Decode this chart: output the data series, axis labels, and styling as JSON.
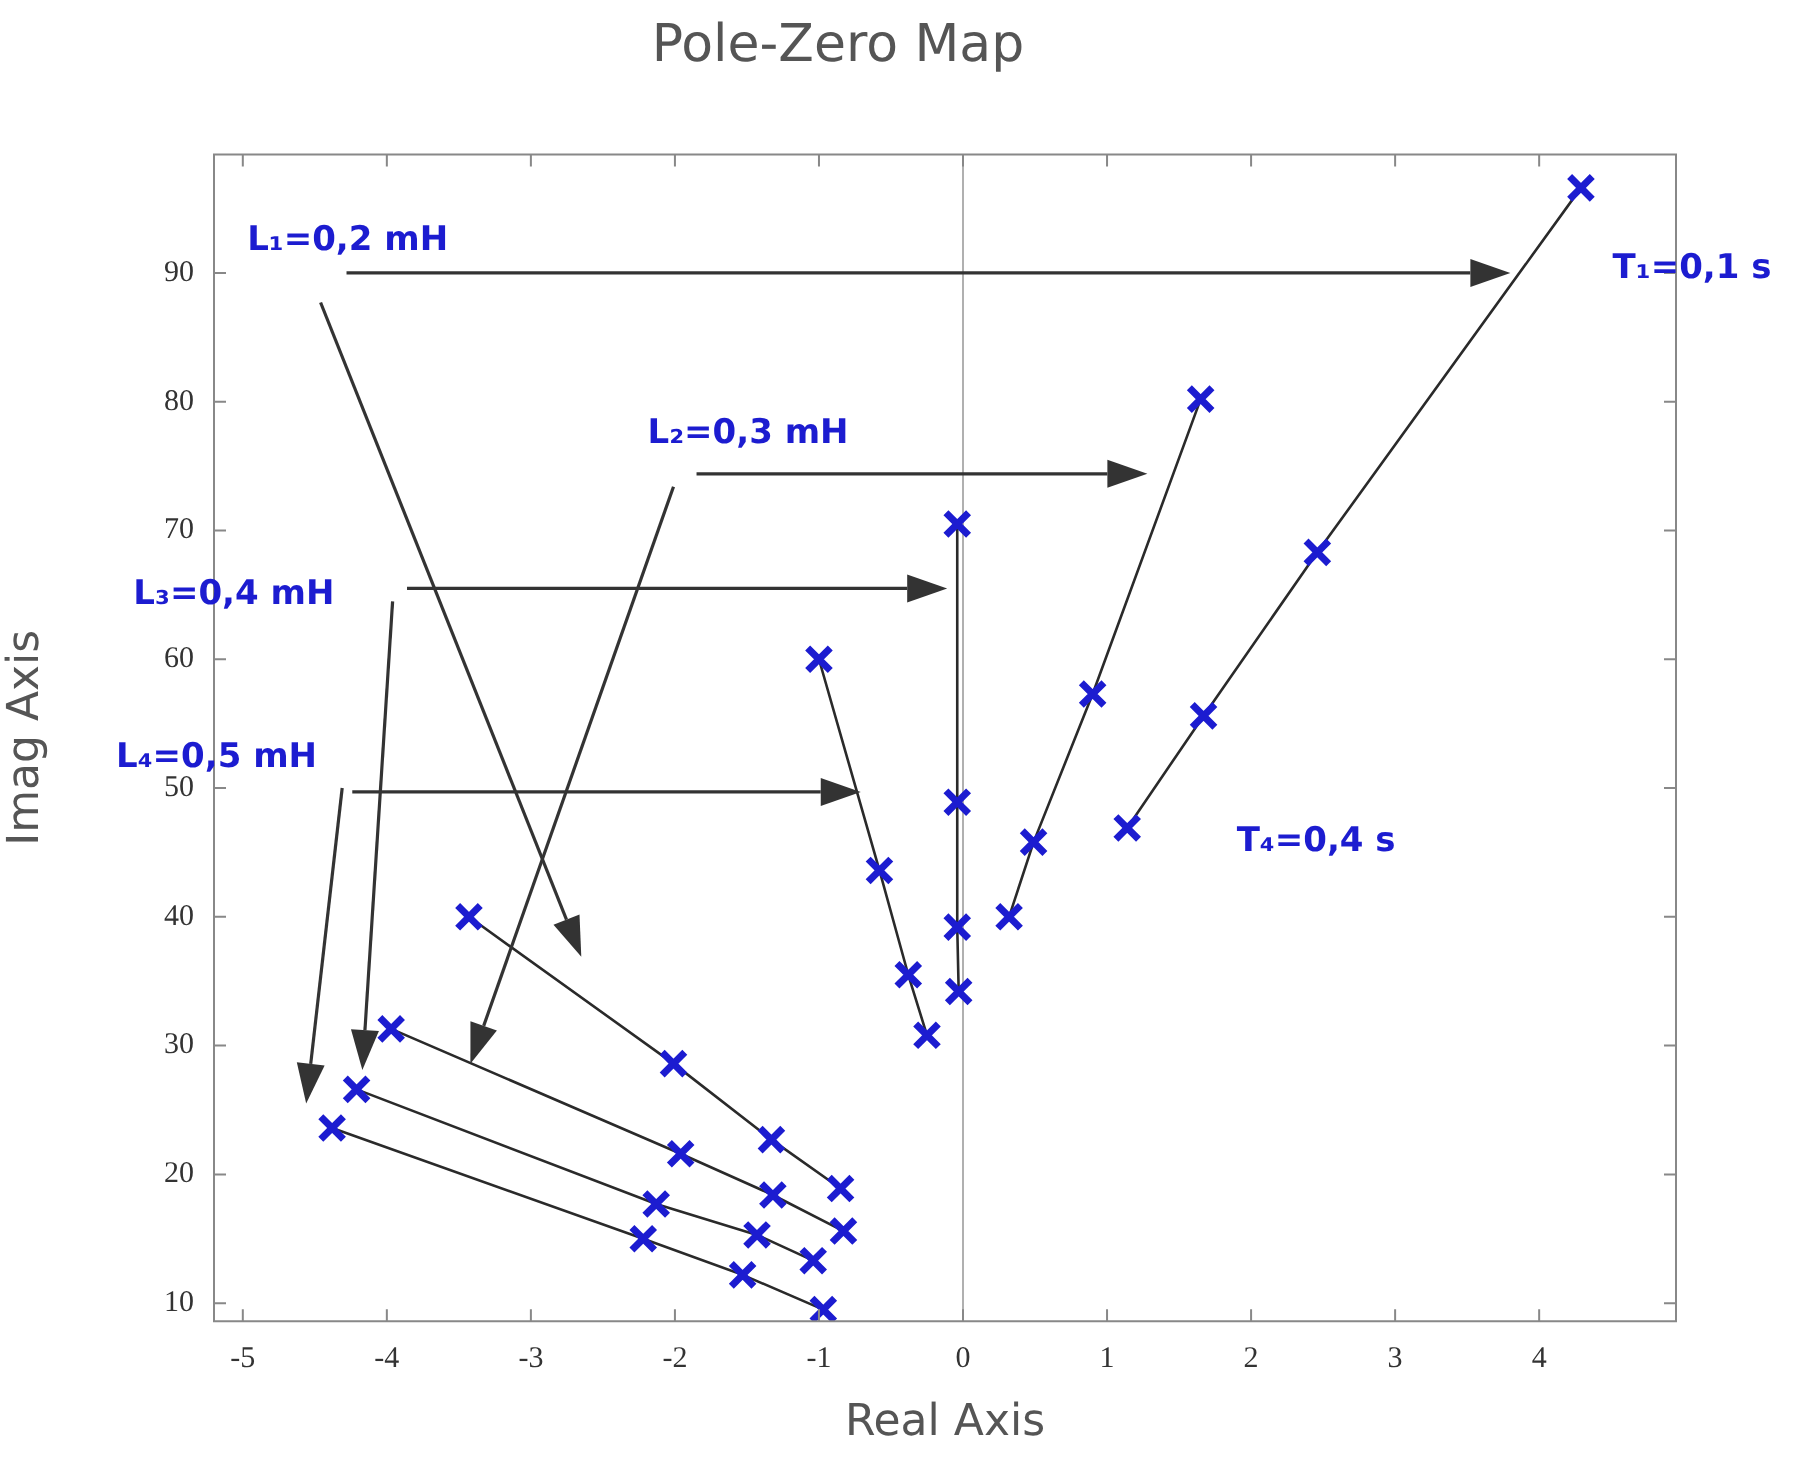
{
  "chart_data": {
    "type": "line",
    "title": "Pole-Zero Map",
    "xlabel": "Real Axis",
    "ylabel": "Imag Axis",
    "xlim": [
      -5.2,
      4.95
    ],
    "xticks": [
      -5,
      -4,
      -3,
      -2,
      -1,
      0,
      1,
      2,
      3,
      4
    ],
    "ylim": [
      8.6,
      99.2
    ],
    "yticks": [
      10,
      20,
      30,
      40,
      50,
      60,
      70,
      80,
      90
    ],
    "grid": false,
    "legend": false,
    "marker": "cross",
    "line_style": "solid",
    "ref_lines": [
      {
        "axis": "x",
        "value": 0,
        "color": "#b0b0b0"
      }
    ],
    "series": [
      {
        "color": "#1c1cd0",
        "x": [
          4.29,
          2.46,
          1.67,
          1.14
        ],
        "values": [
          96.6,
          68.3,
          55.6,
          46.9
        ]
      },
      {
        "color": "#1c1cd0",
        "x": [
          1.65,
          0.9,
          0.49,
          0.32
        ],
        "values": [
          80.2,
          57.3,
          45.8,
          40.0
        ]
      },
      {
        "color": "#1c1cd0",
        "x": [
          -0.04,
          -0.04,
          -0.04,
          -0.03
        ],
        "values": [
          70.5,
          48.9,
          39.2,
          34.2
        ]
      },
      {
        "color": "#1c1cd0",
        "x": [
          -1.0,
          -0.58,
          -0.38,
          -0.25
        ],
        "values": [
          60.0,
          43.6,
          35.5,
          30.8
        ]
      },
      {
        "color": "#1c1cd0",
        "x": [
          -3.43,
          -2.01,
          -1.33,
          -0.85
        ],
        "values": [
          40.0,
          28.6,
          22.7,
          18.9
        ]
      },
      {
        "color": "#1c1cd0",
        "x": [
          -3.97,
          -1.96,
          -1.32,
          -0.83
        ],
        "values": [
          31.3,
          21.6,
          18.4,
          15.6
        ]
      },
      {
        "color": "#1c1cd0",
        "x": [
          -4.21,
          -2.13,
          -1.43,
          -1.04
        ],
        "values": [
          26.6,
          17.7,
          15.3,
          13.3
        ]
      },
      {
        "color": "#1c1cd0",
        "x": [
          -4.38,
          -2.22,
          -1.53,
          -0.97
        ],
        "values": [
          23.6,
          15.0,
          12.2,
          9.5
        ]
      }
    ],
    "annotations": [
      "L₁=0,2 mH",
      "L₂=0,3 mH",
      "L₃=0,4 mH",
      "L₄=0,5 mH",
      "T₁=0,1 s",
      "T₄=0,4 s"
    ]
  }
}
